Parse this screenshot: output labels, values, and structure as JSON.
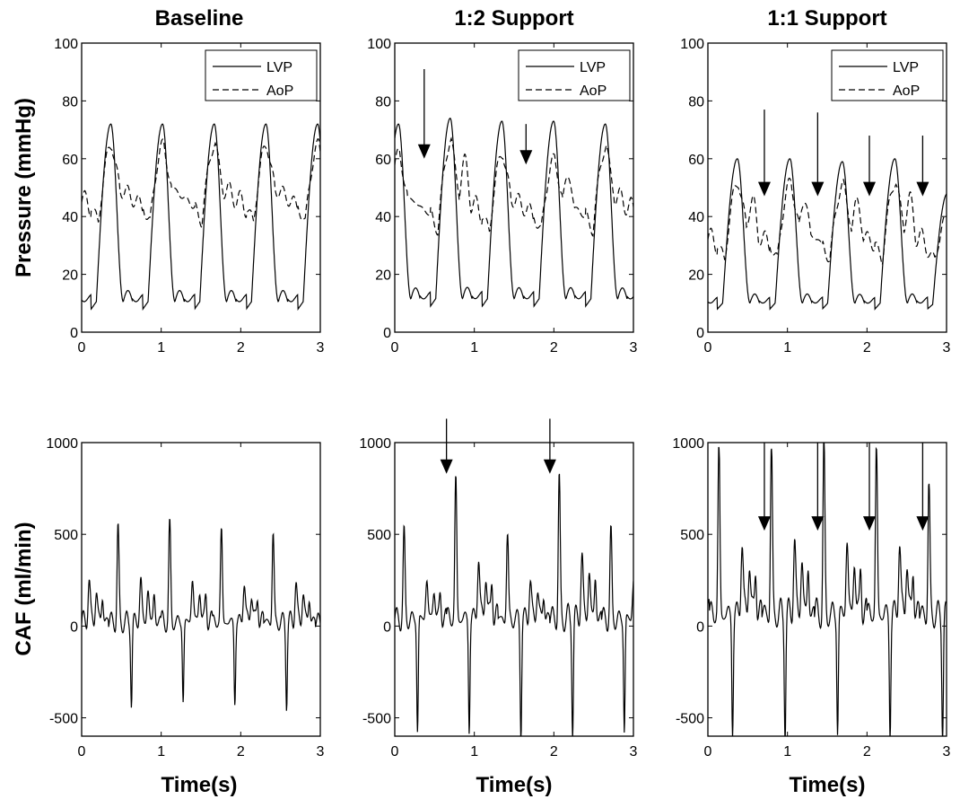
{
  "figure": {
    "columns": [
      "Baseline",
      "1:2 Support",
      "1:1 Support"
    ],
    "row_ylabels": [
      "Pressure (mmHg)",
      "CAF (ml/min)"
    ],
    "xlabel": "Time(s)",
    "legend": [
      "LVP",
      "AoP"
    ]
  },
  "chart_data": [
    {
      "type": "line",
      "title": "Baseline",
      "ylabel": "Pressure (mmHg)",
      "xlabel": "",
      "xlim": [
        0,
        3
      ],
      "ylim": [
        0,
        100
      ],
      "xticks": [
        0,
        1,
        2,
        3
      ],
      "yticks": [
        0,
        20,
        40,
        60,
        80,
        100
      ],
      "legend_position": "top-right",
      "series": [
        {
          "name": "LVP",
          "style": "solid",
          "period": 0.65,
          "phase": 0.12,
          "min": 8,
          "max": 72,
          "beats": [
            72,
            72,
            72,
            72,
            72
          ]
        },
        {
          "name": "AoP",
          "style": "dashed",
          "period": 0.65,
          "phase": 0.12,
          "min": 38,
          "max": 65,
          "beats": [
            65,
            65,
            65,
            65,
            65
          ]
        }
      ],
      "arrows": []
    },
    {
      "type": "line",
      "title": "1:2 Support",
      "ylabel": "",
      "xlabel": "",
      "xlim": [
        0,
        3
      ],
      "ylim": [
        0,
        100
      ],
      "xticks": [
        0,
        1,
        2,
        3
      ],
      "yticks": [
        0,
        20,
        40,
        60,
        80,
        100
      ],
      "legend_position": "top-right",
      "series": [
        {
          "name": "LVP",
          "style": "solid",
          "period": 0.65,
          "phase": -0.2,
          "min": 9,
          "max": 73,
          "beats": [
            72,
            74,
            73,
            73,
            72
          ]
        },
        {
          "name": "AoP",
          "style": "dashed",
          "period": 0.65,
          "phase": -0.2,
          "min": 35,
          "max": 62,
          "beats": [
            62,
            66,
            62,
            60,
            64
          ]
        }
      ],
      "arrows": [
        {
          "x": 0.37,
          "y_from": 91,
          "y_to": 60
        },
        {
          "x": 1.65,
          "y_from": 72,
          "y_to": 58
        }
      ]
    },
    {
      "type": "line",
      "title": "1:1 Support",
      "ylabel": "",
      "xlabel": "",
      "xlim": [
        0,
        3
      ],
      "ylim": [
        0,
        100
      ],
      "xticks": [
        0,
        1,
        2,
        3
      ],
      "yticks": [
        0,
        20,
        40,
        60,
        80,
        100
      ],
      "legend_position": "top-right",
      "series": [
        {
          "name": "LVP",
          "style": "solid",
          "period": 0.66,
          "phase": 0.12,
          "min": 8,
          "max": 60,
          "beats": [
            60,
            60,
            59,
            60,
            48
          ]
        },
        {
          "name": "AoP",
          "style": "dashed",
          "period": 0.66,
          "phase": 0.12,
          "min": 25,
          "max": 52,
          "beats": [
            52,
            52,
            51,
            52,
            40
          ]
        }
      ],
      "arrows": [
        {
          "x": 0.71,
          "y_from": 77,
          "y_to": 47
        },
        {
          "x": 1.38,
          "y_from": 76,
          "y_to": 47
        },
        {
          "x": 2.03,
          "y_from": 68,
          "y_to": 47
        },
        {
          "x": 2.7,
          "y_from": 68,
          "y_to": 47
        }
      ]
    },
    {
      "type": "line",
      "title": "",
      "ylabel": "CAF (ml/min)",
      "xlabel": "Time(s)",
      "xlim": [
        0,
        3
      ],
      "ylim": [
        -600,
        1000
      ],
      "xticks": [
        0,
        1,
        2,
        3
      ],
      "yticks": [
        -500,
        0,
        500,
        1000
      ],
      "series": [
        {
          "name": "CAF",
          "style": "solid",
          "period": 0.65,
          "phase": 0.34,
          "peak": 540,
          "trough": -410,
          "midpeak": 280,
          "base": 20,
          "beats": [
            540,
            560,
            540,
            520,
            520
          ]
        }
      ],
      "arrows": []
    },
    {
      "type": "line",
      "title": "",
      "ylabel": "",
      "xlabel": "Time(s)",
      "xlim": [
        0,
        3
      ],
      "ylim": [
        -600,
        1000
      ],
      "xticks": [
        0,
        1,
        2,
        3
      ],
      "yticks": [
        -500,
        0,
        500,
        1000
      ],
      "series": [
        {
          "name": "CAF",
          "style": "solid",
          "period": 0.65,
          "phase": 0.0,
          "peak": 520,
          "trough": -560,
          "midpeak": 250,
          "base": 40,
          "beats": [
            520,
            820,
            520,
            820,
            520
          ]
        }
      ],
      "arrows": [
        {
          "x": 0.65,
          "y_from": 1130,
          "y_to": 830
        },
        {
          "x": 1.95,
          "y_from": 1130,
          "y_to": 830
        }
      ]
    },
    {
      "type": "line",
      "title": "",
      "ylabel": "",
      "xlabel": "Time(s)",
      "xlim": [
        0,
        3
      ],
      "ylim": [
        -600,
        1000
      ],
      "xticks": [
        0,
        1,
        2,
        3
      ],
      "yticks": [
        -500,
        0,
        500,
        1000
      ],
      "series": [
        {
          "name": "CAF",
          "style": "solid",
          "period": 0.66,
          "phase": 0.02,
          "peak": 980,
          "trough": -570,
          "midpeak": 460,
          "base": 60,
          "beats": [
            980,
            980,
            980,
            980,
            780
          ]
        }
      ],
      "arrows": [
        {
          "x": 0.71,
          "y_from": 1000,
          "y_to": 520
        },
        {
          "x": 1.38,
          "y_from": 1000,
          "y_to": 520
        },
        {
          "x": 2.03,
          "y_from": 1000,
          "y_to": 520
        },
        {
          "x": 2.7,
          "y_from": 1000,
          "y_to": 520
        }
      ]
    }
  ]
}
